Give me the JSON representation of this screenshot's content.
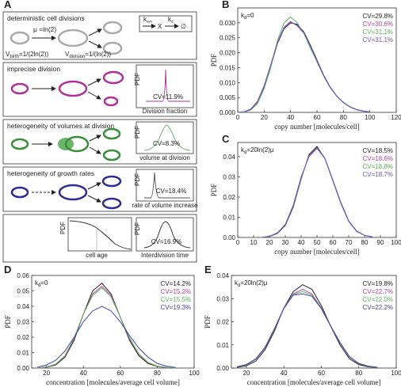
{
  "panel_a": {
    "label": "A",
    "box1": {
      "title": "deterministic cell divisions",
      "rate": "μ =ln(2)",
      "vbirth": [
        "V",
        "birth",
        "=1/(2ln(2))"
      ],
      "vdiv": [
        "V",
        "division",
        "=1/(ln(2))"
      ],
      "reaction": {
        "ksyn": [
          "k",
          "syn"
        ],
        "species": "X",
        "kd": [
          "k",
          "d"
        ],
        "sink": "∅"
      }
    },
    "box2": {
      "title": "imprecise division",
      "ylabel": "PDF",
      "cv": "CV=11.9%",
      "caption": "Division fraction"
    },
    "box3": {
      "title": "heterogeneity of volumes at division",
      "ylabel": "PDF",
      "cv": "CV=8.3%",
      "caption": "volume at division"
    },
    "box4": {
      "title": "heterogeneity of growth rates",
      "ylabel": "PDF",
      "cv": "CV=18.4%",
      "caption": "rate of volume increase"
    },
    "box5": {
      "ylabel": "PDF",
      "age_caption": "cell age",
      "ylabel2": "PDF",
      "cv": "CV=16.9%",
      "caption": "Interdivision time"
    }
  },
  "chart_data": [
    {
      "type": "line",
      "panel": "B",
      "annotation": [
        "k",
        "d",
        "=0"
      ],
      "xlabel": "copy number [molecules/cell]",
      "ylabel": "PDF",
      "xlim": [
        0,
        120
      ],
      "xticks": [
        0,
        20,
        40,
        60,
        80,
        100,
        120
      ],
      "ylim": [
        0,
        0.035
      ],
      "yticks": [
        {
          "value": 0,
          "label": "0.000"
        },
        {
          "value": 0.005,
          "label": "0.005"
        },
        {
          "value": 0.01,
          "label": "0.010"
        },
        {
          "value": 0.015,
          "label": "0.015"
        },
        {
          "value": 0.02,
          "label": "0.020"
        },
        {
          "value": 0.025,
          "label": "0.025"
        },
        {
          "value": 0.03,
          "label": "0.030"
        }
      ],
      "x": [
        0,
        5,
        10,
        15,
        20,
        25,
        30,
        35,
        40,
        45,
        50,
        55,
        60,
        65,
        70,
        75,
        80,
        85,
        90,
        95,
        100
      ],
      "series": [
        {
          "name": "CV=29.8%",
          "color": "#222222",
          "values": [
            0,
            0.0002,
            0.001,
            0.0035,
            0.0085,
            0.0155,
            0.023,
            0.028,
            0.03,
            0.0295,
            0.027,
            0.0225,
            0.0175,
            0.0125,
            0.0085,
            0.0055,
            0.0033,
            0.0018,
            0.0009,
            0.0004,
            0.0002
          ]
        },
        {
          "name": "CV=30.6%",
          "color": "#c040b0",
          "values": [
            0,
            0.0002,
            0.0012,
            0.0038,
            0.009,
            0.016,
            0.0235,
            0.0285,
            0.0305,
            0.029,
            0.0265,
            0.022,
            0.017,
            0.0122,
            0.0083,
            0.0054,
            0.0033,
            0.0019,
            0.001,
            0.0005,
            0.0002
          ]
        },
        {
          "name": "CV=31.1%",
          "color": "#5cb85c",
          "values": [
            0,
            0.0001,
            0.0008,
            0.003,
            0.008,
            0.015,
            0.024,
            0.03,
            0.032,
            0.03,
            0.0265,
            0.0215,
            0.017,
            0.0122,
            0.0084,
            0.0055,
            0.0034,
            0.0019,
            0.001,
            0.0005,
            0.0002
          ]
        },
        {
          "name": "CV=31.1%",
          "color": "#6a5acd",
          "values": [
            0,
            0.0002,
            0.0011,
            0.0036,
            0.0088,
            0.0158,
            0.0232,
            0.0283,
            0.0302,
            0.0292,
            0.0268,
            0.0222,
            0.0172,
            0.0124,
            0.0084,
            0.0054,
            0.0033,
            0.0018,
            0.0009,
            0.0004,
            0.0002
          ]
        }
      ]
    },
    {
      "type": "line",
      "panel": "C",
      "annotation": [
        "k",
        "d",
        "=20ln(2)μ"
      ],
      "xlabel": "copy number [molecules/cell]",
      "ylabel": "PDF",
      "xlim": [
        0,
        100
      ],
      "xticks": [
        0,
        10,
        20,
        30,
        40,
        50,
        60,
        70,
        80,
        90,
        100
      ],
      "ylim": [
        0,
        0.047
      ],
      "yticks": [
        {
          "value": 0,
          "label": "0.00"
        },
        {
          "value": 0.01,
          "label": "0.01"
        },
        {
          "value": 0.02,
          "label": "0.02"
        },
        {
          "value": 0.03,
          "label": "0.03"
        },
        {
          "value": 0.04,
          "label": "0.04"
        }
      ],
      "x": [
        15,
        20,
        25,
        30,
        35,
        40,
        45,
        50,
        55,
        60,
        65,
        70,
        75,
        80,
        85
      ],
      "series": [
        {
          "name": "CV=18.5%",
          "color": "#222222",
          "values": [
            0,
            0.0005,
            0.002,
            0.006,
            0.015,
            0.029,
            0.041,
            0.045,
            0.039,
            0.028,
            0.017,
            0.008,
            0.003,
            0.001,
            0.0003
          ]
        },
        {
          "name": "CV=18.6%",
          "color": "#c040b0",
          "values": [
            0,
            0.0005,
            0.0022,
            0.0063,
            0.0155,
            0.0295,
            0.0405,
            0.0445,
            0.0392,
            0.0282,
            0.0172,
            0.0082,
            0.0031,
            0.001,
            0.0003
          ]
        },
        {
          "name": "CV=18.8%",
          "color": "#5cb85c",
          "values": [
            0,
            0.0006,
            0.0023,
            0.0065,
            0.016,
            0.03,
            0.04,
            0.044,
            0.039,
            0.0285,
            0.0175,
            0.0083,
            0.0032,
            0.0011,
            0.0003
          ]
        },
        {
          "name": "CV=18.7%",
          "color": "#6a5acd",
          "values": [
            0,
            0.0006,
            0.0022,
            0.0064,
            0.0158,
            0.0298,
            0.0402,
            0.0442,
            0.0391,
            0.0283,
            0.0174,
            0.0082,
            0.0031,
            0.001,
            0.0003
          ]
        }
      ]
    },
    {
      "type": "line",
      "panel": "D",
      "annotation": [
        "k",
        "d",
        "=0"
      ],
      "xlabel": "concentration [molecules/average cell volume]",
      "ylabel": "PDF",
      "xlim": [
        12,
        100
      ],
      "xticks": [
        20,
        40,
        60,
        80,
        100
      ],
      "ylim": [
        0,
        0.06
      ],
      "yticks": [
        {
          "value": 0,
          "label": "0.00"
        },
        {
          "value": 0.01,
          "label": "0.01"
        },
        {
          "value": 0.02,
          "label": "0.02"
        },
        {
          "value": 0.03,
          "label": "0.03"
        },
        {
          "value": 0.04,
          "label": "0.04"
        },
        {
          "value": 0.05,
          "label": "0.05"
        },
        {
          "value": 0.06,
          "label": "0.06"
        }
      ],
      "x": [
        15,
        20,
        25,
        30,
        35,
        40,
        45,
        50,
        55,
        60,
        65,
        70,
        75,
        80,
        85,
        90
      ],
      "series": [
        {
          "name": "CV=14.2%",
          "color": "#222222",
          "values": [
            0,
            0.0005,
            0.002,
            0.007,
            0.018,
            0.035,
            0.05,
            0.055,
            0.048,
            0.033,
            0.018,
            0.008,
            0.003,
            0.001,
            0.0003,
            0.0001
          ]
        },
        {
          "name": "CV=15.2%",
          "color": "#c040b0",
          "values": [
            0,
            0.0006,
            0.0024,
            0.0078,
            0.019,
            0.035,
            0.048,
            0.053,
            0.047,
            0.033,
            0.019,
            0.009,
            0.0035,
            0.0012,
            0.0004,
            0.0001
          ]
        },
        {
          "name": "CV=15.5%",
          "color": "#5cb85c",
          "values": [
            0,
            0.0007,
            0.0026,
            0.008,
            0.0195,
            0.035,
            0.047,
            0.052,
            0.046,
            0.033,
            0.0195,
            0.0093,
            0.0037,
            0.0013,
            0.0004,
            0.0001
          ]
        },
        {
          "name": "CV=19.3%",
          "color": "#4040b0",
          "values": [
            0.0005,
            0.002,
            0.005,
            0.011,
            0.02,
            0.03,
            0.037,
            0.04,
            0.037,
            0.03,
            0.021,
            0.013,
            0.007,
            0.003,
            0.0012,
            0.0004
          ]
        }
      ]
    },
    {
      "type": "line",
      "panel": "E",
      "annotation": [
        "k",
        "d",
        "=20ln(2)μ"
      ],
      "xlabel": "concentration [molecules/average cell volume]",
      "ylabel": "PDF",
      "xlim": [
        12,
        100
      ],
      "xticks": [
        20,
        40,
        60,
        80,
        100
      ],
      "ylim": [
        0,
        0.04
      ],
      "yticks": [
        {
          "value": 0,
          "label": "0.00"
        },
        {
          "value": 0.01,
          "label": "0.01"
        },
        {
          "value": 0.02,
          "label": "0.02"
        },
        {
          "value": 0.03,
          "label": "0.03"
        },
        {
          "value": 0.04,
          "label": "0.04"
        }
      ],
      "x": [
        15,
        20,
        25,
        30,
        35,
        40,
        45,
        50,
        55,
        60,
        65,
        70,
        75,
        80,
        85,
        90
      ],
      "series": [
        {
          "name": "CV=19.8%",
          "color": "#222222",
          "values": [
            0.0003,
            0.001,
            0.003,
            0.008,
            0.016,
            0.026,
            0.033,
            0.036,
            0.034,
            0.027,
            0.018,
            0.01,
            0.004,
            0.0015,
            0.0005,
            0.0002
          ]
        },
        {
          "name": "CV=22.7%",
          "color": "#c040b0",
          "values": [
            0.0005,
            0.0015,
            0.004,
            0.009,
            0.017,
            0.026,
            0.032,
            0.034,
            0.032,
            0.026,
            0.018,
            0.011,
            0.005,
            0.002,
            0.0008,
            0.0003
          ]
        },
        {
          "name": "CV=22.0%",
          "color": "#5cb85c",
          "values": [
            0.0005,
            0.0014,
            0.0038,
            0.0088,
            0.0168,
            0.0258,
            0.0318,
            0.033,
            0.0315,
            0.0258,
            0.018,
            0.0108,
            0.0048,
            0.0019,
            0.0007,
            0.0002
          ]
        },
        {
          "name": "CV=22.2%",
          "color": "#4040b0",
          "values": [
            0.0005,
            0.0015,
            0.0039,
            0.0089,
            0.017,
            0.0257,
            0.0315,
            0.032,
            0.031,
            0.0257,
            0.0182,
            0.011,
            0.0049,
            0.002,
            0.0008,
            0.0003
          ]
        }
      ]
    }
  ]
}
